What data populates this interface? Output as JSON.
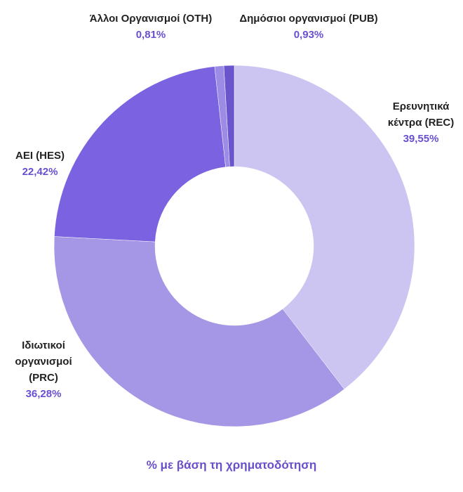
{
  "chart_data": {
    "type": "donut",
    "title": "% με βάση τη χρηματοδότηση",
    "categories": [
      "Ερευνητικά κέντρα (REC)",
      "Ιδιωτικοί οργανισμοί (PRC)",
      "ΑΕΙ (HES)",
      "Άλλοι Οργανισμοί (OTH)",
      "Δημόσιοι οργανισμοί (PUB)"
    ],
    "values": [
      39.55,
      36.28,
      22.42,
      0.81,
      0.93
    ],
    "value_labels": [
      "39,55%",
      "36,28%",
      "22,42%",
      "0,81%",
      "0,93%"
    ],
    "colors": [
      "#cdc5f1",
      "#a697e6",
      "#7a62e0",
      "#9c8ce6",
      "#6b55cc"
    ]
  }
}
